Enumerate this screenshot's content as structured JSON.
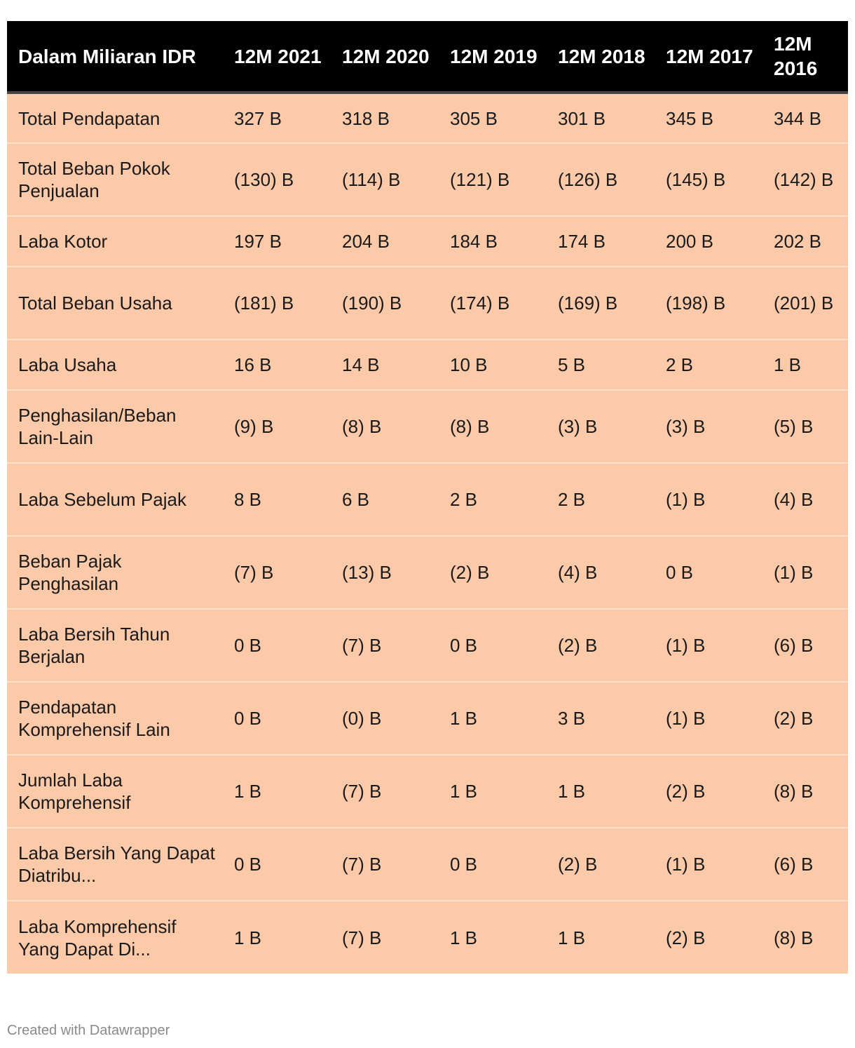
{
  "chart_data": {
    "type": "table",
    "columns": [
      "Dalam Miliaran IDR",
      "12M 2021",
      "12M 2020",
      "12M 2019",
      "12M 2018",
      "12M 2017",
      "12M 2016"
    ],
    "rows": [
      {
        "label": "Total Pendapatan",
        "values": [
          "327 B",
          "318 B",
          "305 B",
          "301 B",
          "345 B",
          "344 B"
        ]
      },
      {
        "label": "Total Beban Pokok Penjualan",
        "values": [
          "(130) B",
          "(114) B",
          "(121) B",
          "(126) B",
          "(145) B",
          "(142) B"
        ]
      },
      {
        "label": "Laba Kotor",
        "values": [
          "197 B",
          "204 B",
          "184 B",
          "174 B",
          "200 B",
          "202 B"
        ]
      },
      {
        "label": "Total Beban Usaha",
        "values": [
          "(181) B",
          "(190) B",
          "(174) B",
          "(169) B",
          "(198) B",
          "(201) B"
        ]
      },
      {
        "label": "Laba Usaha",
        "values": [
          "16 B",
          "14 B",
          "10 B",
          "5 B",
          "2 B",
          "1 B"
        ]
      },
      {
        "label": "Penghasilan/Beban Lain-Lain",
        "values": [
          "(9) B",
          "(8) B",
          "(8) B",
          "(3) B",
          "(3) B",
          "(5) B"
        ]
      },
      {
        "label": "Laba Sebelum Pajak",
        "values": [
          "8 B",
          "6 B",
          "2 B",
          "2 B",
          "(1) B",
          "(4) B"
        ]
      },
      {
        "label": "Beban Pajak Penghasilan",
        "values": [
          "(7) B",
          "(13) B",
          "(2) B",
          "(4) B",
          "0 B",
          "(1) B"
        ]
      },
      {
        "label": "Laba Bersih Tahun Berjalan",
        "values": [
          "0 B",
          "(7) B",
          "0 B",
          "(2) B",
          "(1) B",
          "(6) B"
        ]
      },
      {
        "label": "Pendapatan Komprehensif Lain",
        "values": [
          "0 B",
          "(0) B",
          "1 B",
          "3 B",
          "(1) B",
          "(2) B"
        ]
      },
      {
        "label": "Jumlah Laba Komprehensif",
        "values": [
          "1 B",
          "(7) B",
          "1 B",
          "1 B",
          "(2) B",
          "(8) B"
        ]
      },
      {
        "label": "Laba Bersih Yang Dapat Diatribu...",
        "values": [
          "0 B",
          "(7) B",
          "0 B",
          "(2) B",
          "(1) B",
          "(6) B"
        ]
      },
      {
        "label": "Laba Komprehensif Yang Dapat Di...",
        "values": [
          "1 B",
          "(7) B",
          "1 B",
          "1 B",
          "(2) B",
          "(8) B"
        ]
      }
    ]
  },
  "footer": {
    "credit": "Created with Datawrapper"
  },
  "colors": {
    "header_bg": "#000000",
    "row_bg": "#fcc9a9",
    "row_divider": "#ffe0cc"
  }
}
